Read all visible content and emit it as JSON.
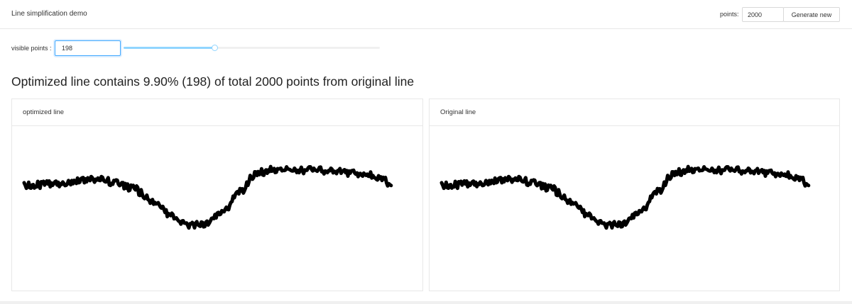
{
  "header": {
    "title": "Line simplification demo",
    "points_label": "points:",
    "points_value": "2000",
    "generate_button": "Generate new"
  },
  "controls": {
    "visible_label": "visible points :",
    "visible_value": "198",
    "slider": {
      "value": 198,
      "min": 0,
      "max": 2000
    }
  },
  "summary": {
    "text": "Optimized line contains 9.90% (198) of total 2000 points from original line"
  },
  "panels": [
    {
      "title": "optimized line"
    },
    {
      "title": "Original line"
    }
  ],
  "colors": {
    "line": "#000000",
    "accent": "#40a9ff",
    "slider_fill": "#91d5ff",
    "border": "#e8e8e8"
  }
}
